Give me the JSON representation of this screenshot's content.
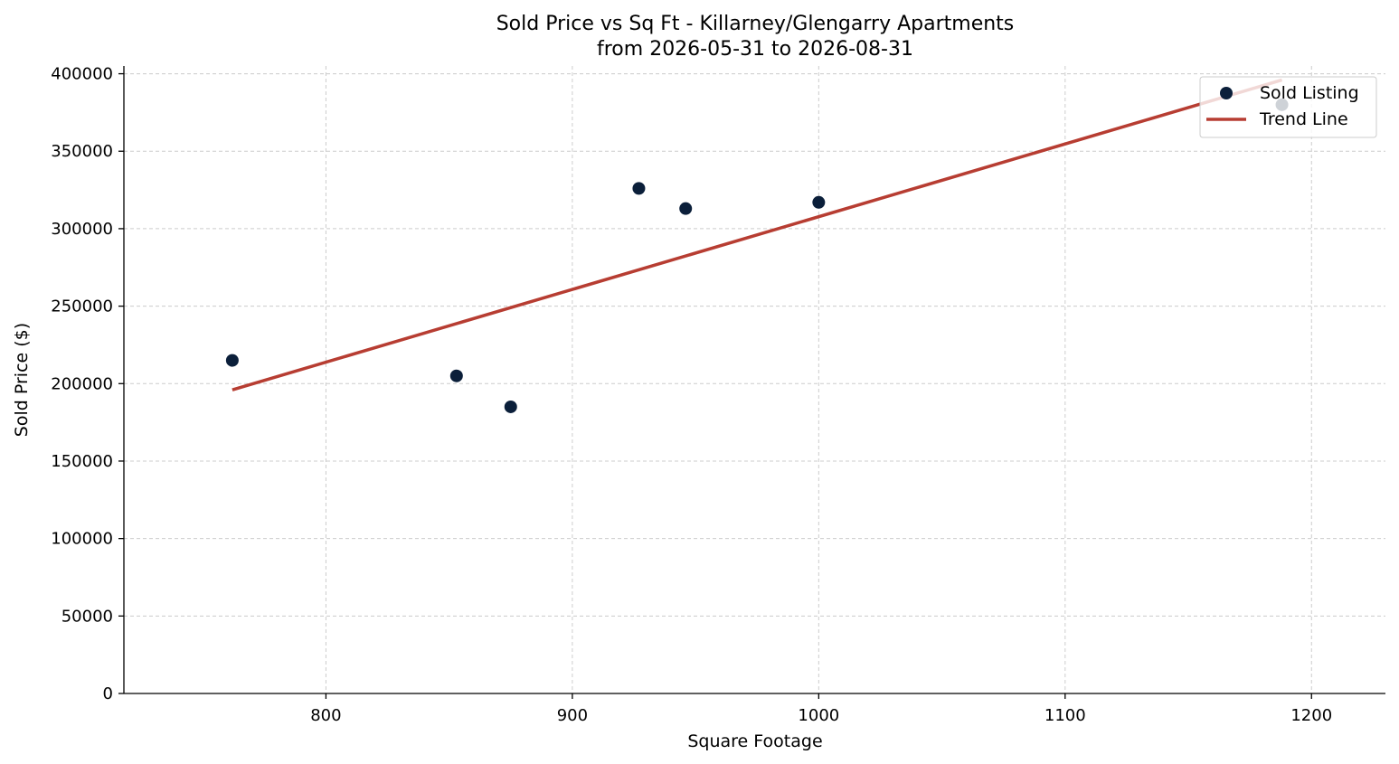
{
  "chart_data": {
    "type": "scatter",
    "title": "Sold Price vs Sq Ft - Killarney/Glengarry Apartments",
    "subtitle": "from 2026-05-31 to 2026-08-31",
    "xlabel": "Square Footage",
    "ylabel": "Sold Price ($)",
    "xlim": [
      718,
      1230
    ],
    "ylim": [
      0,
      405000
    ],
    "xticks": [
      800,
      900,
      1000,
      1100,
      1200
    ],
    "yticks": [
      0,
      50000,
      100000,
      150000,
      200000,
      250000,
      300000,
      350000,
      400000
    ],
    "grid": true,
    "legend_position": "top-right",
    "series": [
      {
        "name": "Sold Listing",
        "kind": "scatter",
        "color": "#0b1f3a",
        "x": [
          762,
          853,
          875,
          927,
          946,
          1000,
          1188
        ],
        "y": [
          215000,
          205000,
          185000,
          326000,
          313000,
          317000,
          380000
        ]
      },
      {
        "name": "Trend Line",
        "kind": "line",
        "color": "#b73d32",
        "x": [
          762,
          1188
        ],
        "y": [
          196000,
          396000
        ]
      }
    ]
  }
}
